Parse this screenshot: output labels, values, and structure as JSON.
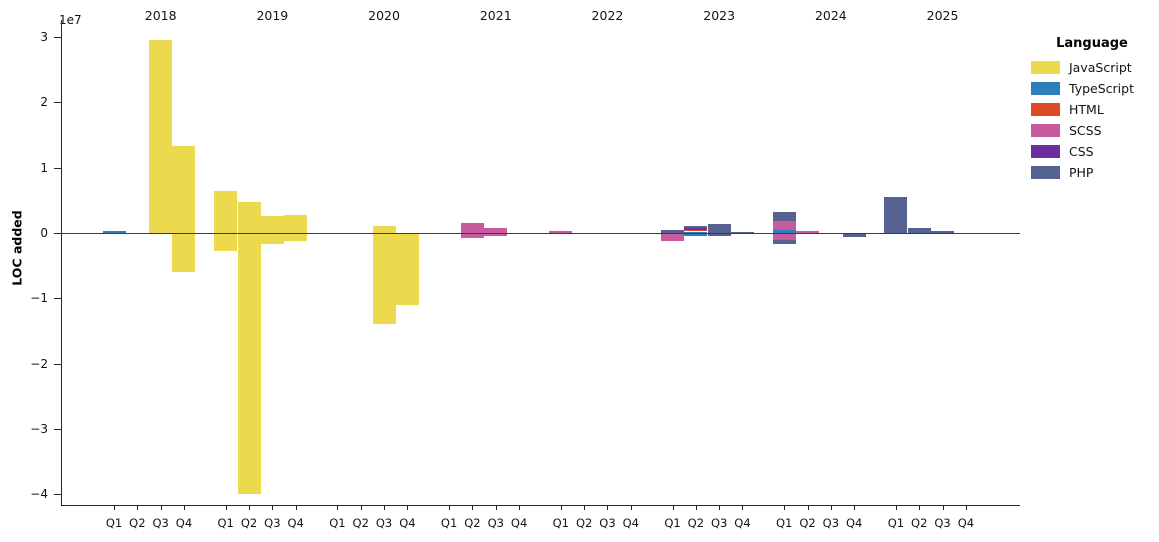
{
  "chart_data": {
    "type": "bar",
    "title": "",
    "ylabel": "LOC added",
    "y_offset_label": "1e7",
    "legend_title": "Language",
    "legend_position": "upper right, outside plot",
    "grid": false,
    "stacking": "stacked by language; positive segments above zero line, negative segments below",
    "y_ticks_1e7": [
      3,
      2,
      1,
      0,
      -1,
      -2,
      -3,
      -4
    ],
    "ylim_1e7": [
      -4.25,
      3.1
    ],
    "years": [
      "2018",
      "2019",
      "2020",
      "2021",
      "2022",
      "2023",
      "2024",
      "2025"
    ],
    "quarters": [
      "Q1",
      "Q2",
      "Q3",
      "Q4"
    ],
    "languages": [
      {
        "name": "JavaScript",
        "color": "#ecd94d"
      },
      {
        "name": "TypeScript",
        "color": "#2e7ebc"
      },
      {
        "name": "HTML",
        "color": "#df4a26"
      },
      {
        "name": "SCSS",
        "color": "#c75b9d"
      },
      {
        "name": "CSS",
        "color": "#6c2da0"
      },
      {
        "name": "PHP",
        "color": "#55618f"
      }
    ],
    "segments": [
      {
        "year": "2018",
        "quarter": "Q1",
        "language": "TypeScript",
        "loc": 300000
      },
      {
        "year": "2018",
        "quarter": "Q3",
        "language": "JavaScript",
        "loc": 29500000
      },
      {
        "year": "2018",
        "quarter": "Q4",
        "language": "JavaScript",
        "loc": 13300000
      },
      {
        "year": "2018",
        "quarter": "Q4",
        "language": "JavaScript",
        "loc": -5800000
      },
      {
        "year": "2019",
        "quarter": "Q1",
        "language": "JavaScript",
        "loc": 6500000
      },
      {
        "year": "2019",
        "quarter": "Q1",
        "language": "JavaScript",
        "loc": -2600000
      },
      {
        "year": "2019",
        "quarter": "Q2",
        "language": "JavaScript",
        "loc": 4800000
      },
      {
        "year": "2019",
        "quarter": "Q2",
        "language": "JavaScript",
        "loc": -39800000
      },
      {
        "year": "2019",
        "quarter": "Q3",
        "language": "JavaScript",
        "loc": 2600000
      },
      {
        "year": "2019",
        "quarter": "Q3",
        "language": "JavaScript",
        "loc": -1500000
      },
      {
        "year": "2019",
        "quarter": "Q4",
        "language": "JavaScript",
        "loc": 2800000
      },
      {
        "year": "2019",
        "quarter": "Q4",
        "language": "JavaScript",
        "loc": -1100000
      },
      {
        "year": "2020",
        "quarter": "Q3",
        "language": "JavaScript",
        "loc": 1100000
      },
      {
        "year": "2020",
        "quarter": "Q3",
        "language": "JavaScript",
        "loc": -13800000
      },
      {
        "year": "2020",
        "quarter": "Q4",
        "language": "JavaScript",
        "loc": -10900000
      },
      {
        "year": "2021",
        "quarter": "Q2",
        "language": "SCSS",
        "loc": 1500000
      },
      {
        "year": "2021",
        "quarter": "Q2",
        "language": "SCSS",
        "loc": -600000
      },
      {
        "year": "2021",
        "quarter": "Q3",
        "language": "SCSS",
        "loc": 700000
      },
      {
        "year": "2021",
        "quarter": "Q3",
        "language": "SCSS",
        "loc": -300000
      },
      {
        "year": "2022",
        "quarter": "Q1",
        "language": "SCSS",
        "loc": 300000
      },
      {
        "year": "2023",
        "quarter": "Q1",
        "language": "PHP",
        "loc": 500000
      },
      {
        "year": "2023",
        "quarter": "Q1",
        "language": "SCSS",
        "loc": -1000000
      },
      {
        "year": "2023",
        "quarter": "Q2",
        "language": "TypeScript",
        "loc": 150000
      },
      {
        "year": "2023",
        "quarter": "Q2",
        "language": "HTML",
        "loc": 250000
      },
      {
        "year": "2023",
        "quarter": "Q2",
        "language": "CSS",
        "loc": 100000
      },
      {
        "year": "2023",
        "quarter": "Q2",
        "language": "PHP",
        "loc": 300000
      },
      {
        "year": "2023",
        "quarter": "Q2",
        "language": "TypeScript",
        "loc": -250000
      },
      {
        "year": "2023",
        "quarter": "Q3",
        "language": "PHP",
        "loc": 1400000
      },
      {
        "year": "2023",
        "quarter": "Q3",
        "language": "PHP",
        "loc": -200000
      },
      {
        "year": "2023",
        "quarter": "Q4",
        "language": "PHP",
        "loc": 200000
      },
      {
        "year": "2024",
        "quarter": "Q1",
        "language": "TypeScript",
        "loc": 450000
      },
      {
        "year": "2024",
        "quarter": "Q1",
        "language": "SCSS",
        "loc": 1400000
      },
      {
        "year": "2024",
        "quarter": "Q1",
        "language": "PHP",
        "loc": 1400000
      },
      {
        "year": "2024",
        "quarter": "Q1",
        "language": "SCSS",
        "loc": -900000
      },
      {
        "year": "2024",
        "quarter": "Q1",
        "language": "PHP",
        "loc": -600000
      },
      {
        "year": "2024",
        "quarter": "Q2",
        "language": "SCSS",
        "loc": 350000
      },
      {
        "year": "2024",
        "quarter": "Q4",
        "language": "PHP",
        "loc": -400000
      },
      {
        "year": "2025",
        "quarter": "Q1",
        "language": "PHP",
        "loc": 5500000
      },
      {
        "year": "2025",
        "quarter": "Q2",
        "language": "PHP",
        "loc": 800000
      },
      {
        "year": "2025",
        "quarter": "Q3",
        "language": "PHP",
        "loc": 250000
      }
    ]
  }
}
